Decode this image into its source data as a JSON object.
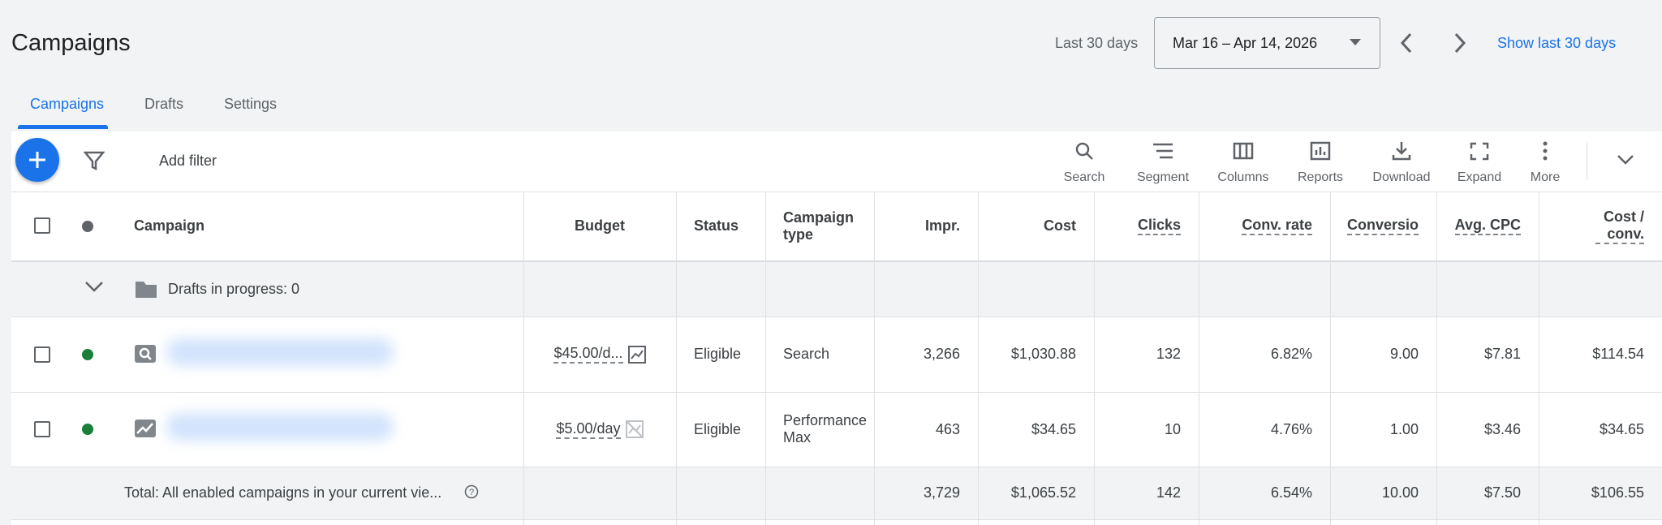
{
  "header": {
    "title": "Campaigns",
    "date_range_label": "Last 30 days",
    "date_range": "Mar 16 – Apr 14, 2026",
    "show_last": "Show last 30 days"
  },
  "tabs": [
    "Campaigns",
    "Drafts",
    "Settings"
  ],
  "toolbar": {
    "add_filter": "Add filter",
    "actions": [
      "Search",
      "Segment",
      "Columns",
      "Reports",
      "Download",
      "Expand",
      "More"
    ]
  },
  "table": {
    "columns": [
      "Campaign",
      "Budget",
      "Status",
      "Campaign type",
      "Impr.",
      "Cost",
      "Clicks",
      "Conv. rate",
      "Conversio",
      "Avg. CPC",
      "Cost / conv."
    ],
    "drafts_row": "Drafts in progress: 0",
    "rows": [
      [
        "$45.00/d...",
        "Eligible",
        "Search",
        "3,266",
        "$1,030.88",
        "132",
        "6.82%",
        "9.00",
        "$7.81",
        "$114.54"
      ],
      [
        "$5.00/day",
        "Eligible",
        "Performance Max",
        "463",
        "$34.65",
        "10",
        "4.76%",
        "1.00",
        "$3.46",
        "$34.65"
      ]
    ],
    "total": {
      "label": "Total: All enabled campaigns in your current vie...",
      "cells": [
        "3,729",
        "$1,065.52",
        "142",
        "6.54%",
        "10.00",
        "$7.50",
        "$106.55"
      ]
    }
  }
}
